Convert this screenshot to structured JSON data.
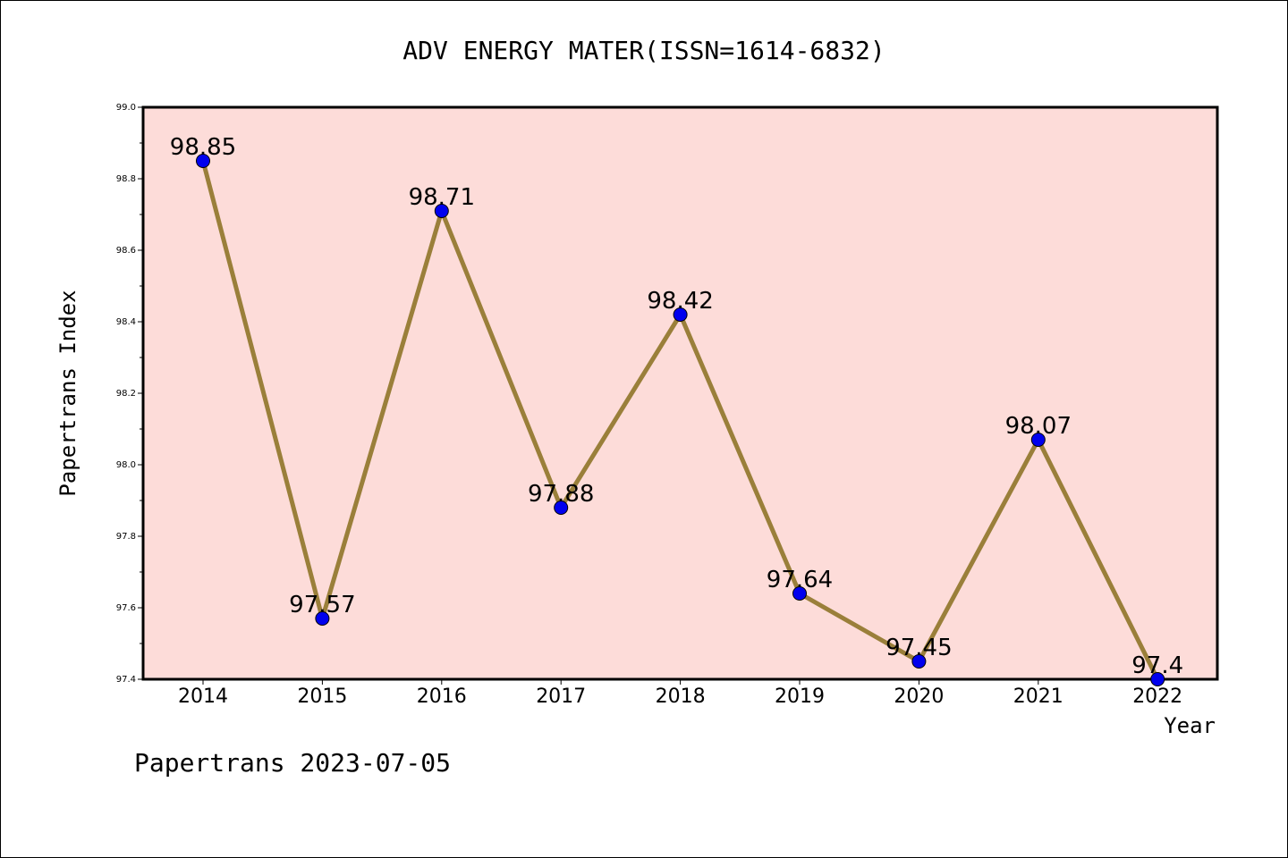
{
  "chart_data": {
    "type": "line",
    "title": "ADV ENERGY MATER(ISSN=1614-6832)",
    "xlabel": "Year",
    "ylabel": "Papertrans Index",
    "x": [
      "2014",
      "2015",
      "2016",
      "2017",
      "2018",
      "2019",
      "2020",
      "2021",
      "2022"
    ],
    "series": [
      {
        "values": [
          98.85,
          97.57,
          98.71,
          97.88,
          98.42,
          97.64,
          97.45,
          98.07,
          97.4
        ],
        "labels": [
          "98.85",
          "97.57",
          "98.71",
          "97.88",
          "98.42",
          "97.64",
          "97.45",
          "98.07",
          "97.4"
        ]
      }
    ],
    "ylim": [
      97.4,
      99.0
    ],
    "yticks": [
      "97.4",
      "97.6",
      "97.8",
      "98.0",
      "98.2",
      "98.4",
      "98.6",
      "98.8",
      "99.0"
    ],
    "grid": false,
    "colors": {
      "plot_background": "#fddcd9",
      "line": "#9a7f3a",
      "marker": "#0000ee"
    }
  },
  "footer": "Papertrans 2023-07-05"
}
